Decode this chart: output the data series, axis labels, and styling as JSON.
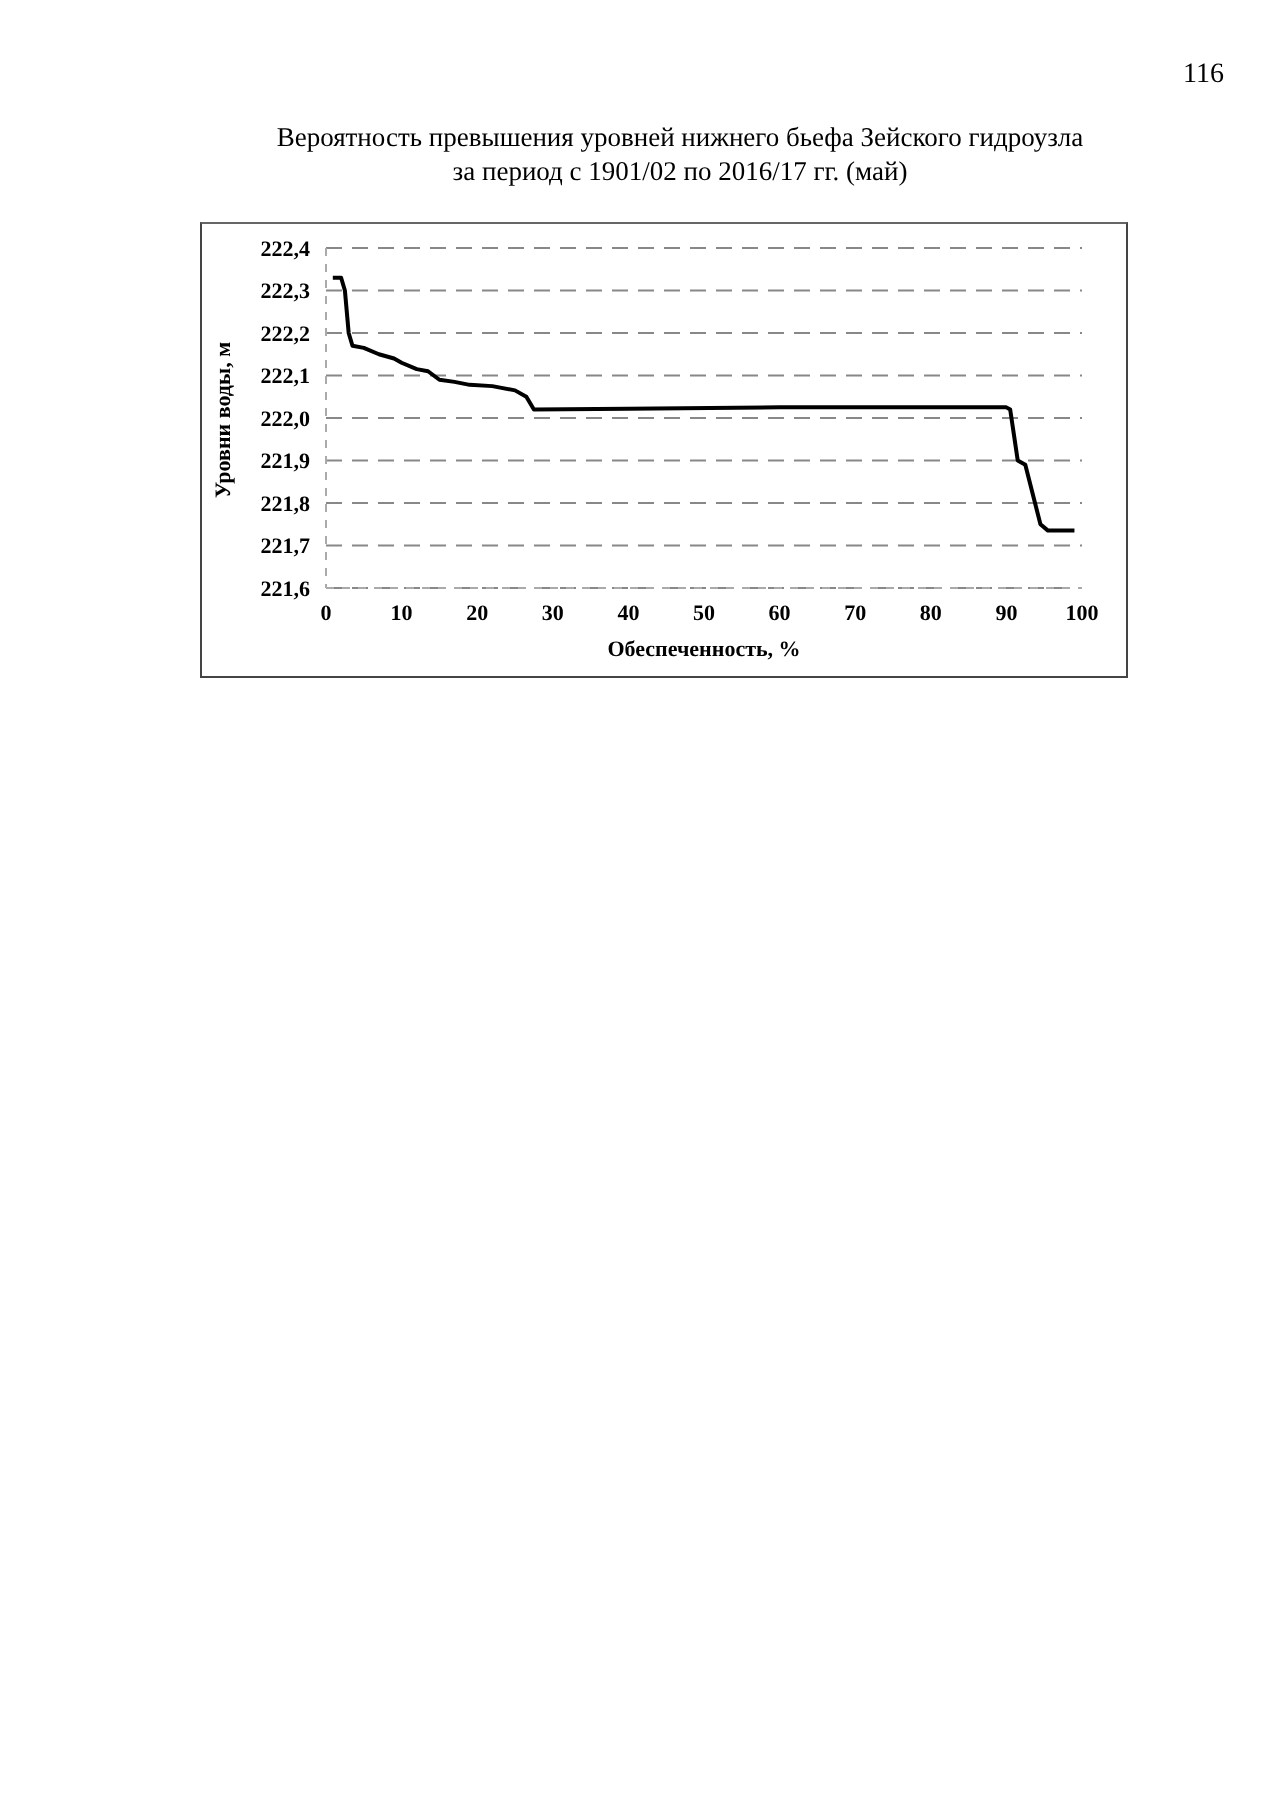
{
  "chart_data": {
    "type": "line",
    "title": "Вероятность превышения уровней нижнего бьефа Зейского гидроузла\nза период с 1901/02 по 2016/17 гг. (май)",
    "xlabel": "Обеспеченность, %",
    "ylabel": "Уровни воды, м",
    "annotations": [
      "116"
    ],
    "series": [
      {
        "color": "#000000",
        "x": [
          0.9,
          2,
          2.5,
          3,
          3.5,
          5,
          7,
          9,
          10,
          12,
          13.5,
          15,
          17,
          19,
          22,
          25,
          26.5,
          27.5,
          40,
          60,
          90,
          90.5,
          91.5,
          92.5,
          93.5,
          94.5,
          95.5,
          99
        ],
        "values": [
          222.33,
          222.33,
          222.3,
          222.2,
          222.17,
          222.165,
          222.15,
          222.14,
          222.13,
          222.115,
          222.11,
          222.09,
          222.085,
          222.078,
          222.075,
          222.065,
          222.05,
          222.02,
          222.022,
          222.025,
          222.025,
          222.02,
          221.9,
          221.89,
          221.82,
          221.75,
          221.735,
          221.735
        ]
      }
    ],
    "xlim": [
      0,
      100
    ],
    "xticks": [
      0,
      10,
      20,
      30,
      40,
      50,
      60,
      70,
      80,
      90,
      100
    ],
    "ylim": [
      221.6,
      222.4
    ],
    "yticks": [
      {
        "value": 221.6,
        "label": "221,6"
      },
      {
        "value": 221.7,
        "label": "221,7"
      },
      {
        "value": 221.8,
        "label": "221,8"
      },
      {
        "value": 221.9,
        "label": "221,9"
      },
      {
        "value": 222.0,
        "label": "222,0"
      },
      {
        "value": 222.1,
        "label": "222,1"
      },
      {
        "value": 222.2,
        "label": "222,2"
      },
      {
        "value": 222.3,
        "label": "222,3"
      },
      {
        "value": 222.4,
        "label": "222,4"
      }
    ],
    "grid": "y",
    "legend": false,
    "marker": "none",
    "line_style": "solid"
  }
}
